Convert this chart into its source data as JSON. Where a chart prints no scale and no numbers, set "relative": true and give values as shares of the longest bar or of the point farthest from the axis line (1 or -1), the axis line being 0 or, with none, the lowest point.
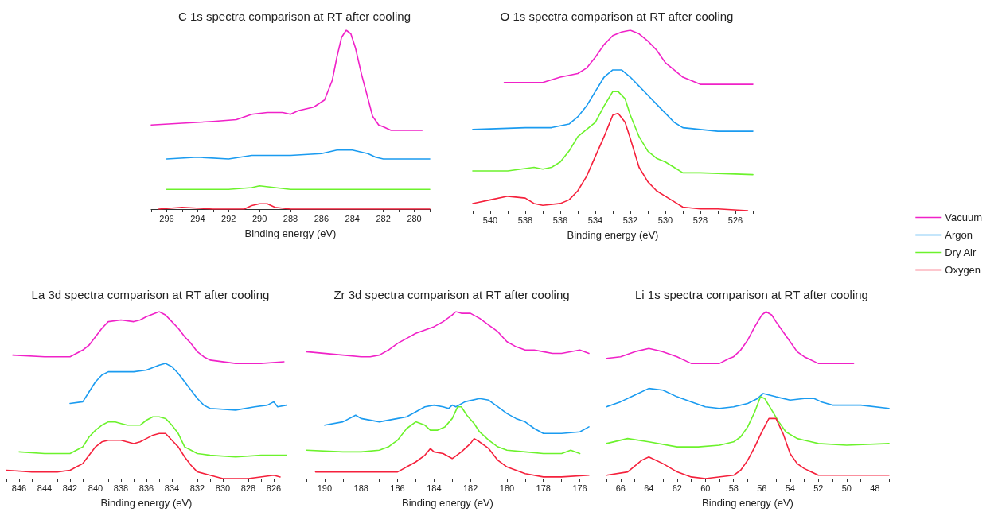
{
  "chart_data": [
    {
      "type": "line",
      "title": "C 1s spectra comparison at RT after cooling",
      "xlabel": "Binding energy (eV)",
      "relative": true,
      "tick_labels": "x",
      "grid": false,
      "marker": "none",
      "line_style": "solid",
      "xlim": [
        297,
        279
      ],
      "xticks": [
        {
          "value": 297,
          "label": null
        },
        296,
        {
          "value": 295,
          "label": null
        },
        294,
        {
          "value": 293,
          "label": null
        },
        292,
        {
          "value": 291,
          "label": null
        },
        290,
        {
          "value": 289,
          "label": null
        },
        288,
        {
          "value": 287,
          "label": null
        },
        286,
        {
          "value": 285,
          "label": null
        },
        284,
        {
          "value": 283,
          "label": null
        },
        282,
        {
          "value": 281,
          "label": null
        },
        280,
        {
          "value": 279,
          "label": null
        }
      ],
      "series": [
        {
          "color": "#f022c8",
          "x": [
            297,
            295,
            293,
            291.5,
            290.5,
            289.5,
            288.5,
            288,
            287.5,
            286.5,
            285.8,
            285.3,
            285,
            284.7,
            284.4,
            284.1,
            283.8,
            283.4,
            283,
            282.7,
            282.3,
            282,
            281.5,
            280.5,
            279.5
          ],
          "values": [
            0.47,
            0.48,
            0.49,
            0.5,
            0.53,
            0.54,
            0.54,
            0.53,
            0.55,
            0.57,
            0.61,
            0.72,
            0.85,
            0.96,
            1,
            0.98,
            0.9,
            0.75,
            0.62,
            0.52,
            0.47,
            0.46,
            0.44,
            0.44,
            0.44
          ]
        },
        {
          "color": "#1a9bf0",
          "x": [
            296,
            294,
            292,
            290.5,
            290,
            288,
            286,
            285,
            284.5,
            284,
            283.5,
            283,
            282.5,
            282,
            280,
            279
          ],
          "values": [
            0.28,
            0.29,
            0.28,
            0.3,
            0.3,
            0.3,
            0.31,
            0.33,
            0.33,
            0.33,
            0.32,
            0.31,
            0.29,
            0.28,
            0.28,
            0.28
          ]
        },
        {
          "color": "#6cf22c",
          "x": [
            296,
            292,
            290.5,
            290,
            289,
            288,
            284,
            279
          ],
          "values": [
            0.11,
            0.11,
            0.12,
            0.13,
            0.12,
            0.11,
            0.11,
            0.11
          ]
        },
        {
          "color": "#f5213c",
          "x": [
            296.5,
            295,
            293,
            291,
            290.5,
            290,
            289.5,
            289,
            288,
            284,
            279
          ],
          "values": [
            0,
            0.01,
            0,
            0,
            0.02,
            0.03,
            0.03,
            0.01,
            0,
            0,
            0
          ]
        }
      ]
    },
    {
      "type": "line",
      "title": "O 1s spectra comparison at RT after cooling",
      "xlabel": "Binding energy (eV)",
      "relative": true,
      "tick_labels": "x",
      "grid": false,
      "marker": "none",
      "line_style": "solid",
      "legend": "right",
      "xlim": [
        541,
        525
      ],
      "xticks": [
        {
          "value": 541,
          "label": null
        },
        540,
        {
          "value": 539,
          "label": null
        },
        538,
        {
          "value": 537,
          "label": null
        },
        536,
        {
          "value": 535,
          "label": null
        },
        534,
        {
          "value": 533,
          "label": null
        },
        532,
        {
          "value": 531,
          "label": null
        },
        530,
        {
          "value": 529,
          "label": null
        },
        528,
        {
          "value": 527,
          "label": null
        },
        526,
        {
          "value": 525,
          "label": null
        }
      ],
      "series": [
        {
          "name": "Vacuum",
          "color": "#f022c8",
          "x": [
            539.2,
            537,
            536,
            535,
            534.5,
            534,
            533.5,
            533,
            532.5,
            532,
            531.5,
            531,
            530.5,
            530,
            529.5,
            529,
            528.5,
            528,
            527,
            525
          ],
          "values": [
            0.71,
            0.71,
            0.74,
            0.76,
            0.79,
            0.85,
            0.92,
            0.97,
            0.99,
            1,
            0.98,
            0.94,
            0.89,
            0.82,
            0.78,
            0.74,
            0.72,
            0.7,
            0.7,
            0.7
          ]
        },
        {
          "name": "Argon",
          "color": "#1a9bf0",
          "x": [
            541,
            538,
            536.5,
            535.5,
            535,
            534.5,
            534,
            533.5,
            533,
            532.5,
            532,
            531.5,
            531,
            530.5,
            530,
            529.5,
            529,
            528,
            527,
            525
          ],
          "values": [
            0.45,
            0.46,
            0.46,
            0.48,
            0.52,
            0.58,
            0.66,
            0.74,
            0.78,
            0.78,
            0.74,
            0.69,
            0.64,
            0.59,
            0.54,
            0.49,
            0.46,
            0.45,
            0.44,
            0.44
          ]
        },
        {
          "name": "Dry Air",
          "color": "#6cf22c",
          "x": [
            541,
            539,
            537.5,
            537,
            536.5,
            536,
            535.5,
            535,
            534.5,
            534,
            533.5,
            533,
            532.7,
            532.3,
            532,
            531.5,
            531,
            530.5,
            530,
            529.5,
            529,
            528,
            525
          ],
          "values": [
            0.22,
            0.22,
            0.24,
            0.23,
            0.24,
            0.27,
            0.33,
            0.41,
            0.45,
            0.49,
            0.58,
            0.66,
            0.66,
            0.62,
            0.53,
            0.41,
            0.33,
            0.29,
            0.27,
            0.24,
            0.21,
            0.21,
            0.2
          ]
        },
        {
          "name": "Oxygen",
          "color": "#f5213c",
          "x": [
            541,
            540,
            539,
            538,
            537.5,
            537,
            536,
            535.5,
            535,
            534.5,
            534,
            533.5,
            533,
            532.7,
            532.3,
            532,
            531.5,
            531,
            530.5,
            530,
            529.5,
            529,
            528,
            527,
            525.3
          ],
          "values": [
            0.04,
            0.06,
            0.08,
            0.07,
            0.04,
            0.03,
            0.04,
            0.06,
            0.11,
            0.19,
            0.3,
            0.41,
            0.53,
            0.54,
            0.49,
            0.4,
            0.24,
            0.16,
            0.11,
            0.08,
            0.05,
            0.02,
            0.01,
            0.01,
            0
          ]
        }
      ]
    },
    {
      "type": "line",
      "title": "La 3d spectra comparison at RT after cooling",
      "xlabel": "Binding energy (eV)",
      "relative": true,
      "tick_labels": "x",
      "grid": false,
      "marker": "none",
      "line_style": "solid",
      "xlim": [
        847,
        825
      ],
      "xticks": [
        {
          "value": 847,
          "label": null
        },
        846,
        {
          "value": 845,
          "label": null
        },
        844,
        {
          "value": 843,
          "label": null
        },
        842,
        {
          "value": 841,
          "label": null
        },
        840,
        {
          "value": 839,
          "label": null
        },
        838,
        {
          "value": 837,
          "label": null
        },
        836,
        {
          "value": 835,
          "label": null
        },
        834,
        {
          "value": 833,
          "label": null
        },
        832,
        {
          "value": 831,
          "label": null
        },
        830,
        {
          "value": 829,
          "label": null
        },
        828,
        {
          "value": 827,
          "label": null
        },
        826,
        {
          "value": 825,
          "label": null
        }
      ],
      "series": [
        {
          "color": "#f022c8",
          "x": [
            846.5,
            844,
            842,
            841,
            840.5,
            840,
            839.5,
            839,
            838,
            837,
            836.5,
            836,
            835,
            834.5,
            834,
            833.5,
            833,
            832.5,
            832,
            831.5,
            831,
            829,
            827,
            825.2
          ],
          "values": [
            0.74,
            0.73,
            0.73,
            0.77,
            0.8,
            0.85,
            0.9,
            0.94,
            0.95,
            0.94,
            0.95,
            0.97,
            1,
            0.98,
            0.94,
            0.9,
            0.85,
            0.81,
            0.76,
            0.73,
            0.71,
            0.69,
            0.69,
            0.7
          ]
        },
        {
          "color": "#1a9bf0",
          "x": [
            842,
            841,
            840.5,
            840,
            839.5,
            839,
            838,
            837,
            836,
            835,
            834.5,
            834,
            833.5,
            833,
            832.5,
            832,
            831.5,
            831,
            829,
            827.5,
            826.5,
            826,
            825.7,
            825
          ],
          "values": [
            0.45,
            0.46,
            0.52,
            0.58,
            0.62,
            0.64,
            0.64,
            0.64,
            0.65,
            0.68,
            0.69,
            0.67,
            0.63,
            0.58,
            0.53,
            0.48,
            0.44,
            0.42,
            0.41,
            0.43,
            0.44,
            0.46,
            0.43,
            0.44
          ]
        },
        {
          "color": "#6cf22c",
          "x": [
            846,
            844,
            842,
            841.5,
            841,
            840.5,
            840,
            839.5,
            839,
            838.5,
            838,
            837.5,
            837,
            836.5,
            836,
            835.5,
            835,
            834.5,
            834,
            833.5,
            833,
            832.5,
            832,
            831,
            829,
            827,
            825
          ],
          "values": [
            0.16,
            0.15,
            0.15,
            0.17,
            0.19,
            0.25,
            0.29,
            0.32,
            0.34,
            0.34,
            0.33,
            0.32,
            0.32,
            0.32,
            0.35,
            0.37,
            0.37,
            0.36,
            0.32,
            0.27,
            0.19,
            0.17,
            0.15,
            0.14,
            0.13,
            0.14,
            0.14
          ]
        },
        {
          "color": "#f5213c",
          "x": [
            847,
            845,
            843,
            842,
            841.5,
            841,
            840.5,
            840,
            839.5,
            839,
            838.5,
            838,
            837,
            836.5,
            836,
            835.5,
            835,
            834.5,
            834,
            833.5,
            833,
            832.5,
            832,
            831,
            830,
            828,
            826,
            825.5
          ],
          "values": [
            0.05,
            0.04,
            0.04,
            0.05,
            0.07,
            0.09,
            0.14,
            0.19,
            0.22,
            0.23,
            0.23,
            0.23,
            0.21,
            0.22,
            0.24,
            0.26,
            0.27,
            0.27,
            0.23,
            0.19,
            0.13,
            0.08,
            0.04,
            0.02,
            0,
            0,
            0.02,
            0.01
          ]
        }
      ]
    },
    {
      "type": "line",
      "title": "Zr 3d spectra comparison at RT after cooling",
      "xlabel": "Binding energy (eV)",
      "relative": true,
      "tick_labels": "x",
      "grid": false,
      "marker": "none",
      "line_style": "solid",
      "xlim": [
        191,
        175.5
      ],
      "xticks": [
        {
          "value": 191,
          "label": null
        },
        190,
        {
          "value": 189,
          "label": null
        },
        188,
        {
          "value": 187,
          "label": null
        },
        186,
        {
          "value": 185,
          "label": null
        },
        184,
        {
          "value": 183,
          "label": null
        },
        182,
        {
          "value": 181,
          "label": null
        },
        180,
        {
          "value": 179,
          "label": null
        },
        178,
        {
          "value": 177,
          "label": null
        },
        176
      ],
      "series": [
        {
          "color": "#f022c8",
          "x": [
            191,
            189,
            188,
            187.5,
            187,
            186.5,
            186,
            185.5,
            185,
            184,
            183.5,
            183,
            182.8,
            182.5,
            182,
            181.5,
            181,
            180.5,
            180,
            179.5,
            179,
            178.5,
            178,
            177.5,
            177,
            176,
            175.5
          ],
          "values": [
            0.76,
            0.74,
            0.73,
            0.73,
            0.74,
            0.77,
            0.81,
            0.84,
            0.87,
            0.91,
            0.94,
            0.98,
            1,
            0.99,
            0.99,
            0.96,
            0.92,
            0.88,
            0.82,
            0.79,
            0.77,
            0.77,
            0.76,
            0.75,
            0.75,
            0.77,
            0.75
          ]
        },
        {
          "color": "#1a9bf0",
          "x": [
            190,
            189,
            188.3,
            188,
            187,
            186,
            185.5,
            185,
            184.5,
            184,
            183.5,
            183.2,
            183,
            182.8,
            182.3,
            181.5,
            181,
            180.5,
            180,
            179.5,
            179,
            178.5,
            178,
            177,
            176,
            175.5
          ],
          "values": [
            0.32,
            0.34,
            0.38,
            0.36,
            0.34,
            0.36,
            0.37,
            0.4,
            0.43,
            0.44,
            0.43,
            0.42,
            0.44,
            0.43,
            0.46,
            0.48,
            0.47,
            0.43,
            0.39,
            0.36,
            0.34,
            0.3,
            0.27,
            0.27,
            0.28,
            0.31
          ]
        },
        {
          "color": "#6cf22c",
          "x": [
            191,
            189,
            188,
            187,
            186.5,
            186,
            185.5,
            185,
            184.5,
            184.2,
            183.8,
            183.4,
            183,
            182.7,
            182.5,
            182.2,
            181.8,
            181.5,
            181,
            180.5,
            180,
            179,
            178,
            177,
            176.5,
            176
          ],
          "values": [
            0.17,
            0.16,
            0.16,
            0.17,
            0.19,
            0.23,
            0.3,
            0.34,
            0.32,
            0.29,
            0.29,
            0.31,
            0.36,
            0.43,
            0.43,
            0.38,
            0.33,
            0.28,
            0.23,
            0.19,
            0.17,
            0.16,
            0.15,
            0.15,
            0.17,
            0.15
          ]
        },
        {
          "color": "#f5213c",
          "x": [
            190.5,
            189,
            187,
            186,
            185.5,
            185,
            184.5,
            184.2,
            184,
            183.5,
            183,
            182.5,
            182,
            181.8,
            181.5,
            181,
            180.5,
            180,
            179,
            178,
            177,
            175.5
          ],
          "values": [
            0.04,
            0.04,
            0.04,
            0.04,
            0.07,
            0.1,
            0.14,
            0.18,
            0.16,
            0.15,
            0.12,
            0.16,
            0.21,
            0.24,
            0.22,
            0.18,
            0.11,
            0.07,
            0.03,
            0.01,
            0.01,
            0.02
          ]
        }
      ]
    },
    {
      "type": "line",
      "title": "Li 1s spectra comparison at RT after cooling",
      "xlabel": "Binding energy (eV)",
      "relative": true,
      "tick_labels": "x",
      "grid": false,
      "marker": "none",
      "line_style": "solid",
      "xlim": [
        67,
        47
      ],
      "xticks": [
        {
          "value": 67,
          "label": null
        },
        66,
        {
          "value": 65,
          "label": null
        },
        64,
        {
          "value": 63,
          "label": null
        },
        62,
        {
          "value": 61,
          "label": null
        },
        60,
        {
          "value": 59,
          "label": null
        },
        58,
        {
          "value": 57,
          "label": null
        },
        56,
        {
          "value": 55,
          "label": null
        },
        54,
        {
          "value": 53,
          "label": null
        },
        52,
        {
          "value": 51,
          "label": null
        },
        50,
        {
          "value": 49,
          "label": null
        },
        48,
        {
          "value": 47,
          "label": null
        }
      ],
      "series": [
        {
          "color": "#f022c8",
          "x": [
            67,
            66,
            65,
            64,
            63.5,
            63,
            62,
            61,
            60,
            59,
            58.3,
            58,
            57.5,
            57,
            56.5,
            56,
            55.7,
            55.3,
            55,
            54.5,
            54,
            53.5,
            53,
            52,
            51,
            49.5
          ],
          "values": [
            0.72,
            0.73,
            0.76,
            0.78,
            0.77,
            0.76,
            0.73,
            0.69,
            0.69,
            0.69,
            0.72,
            0.73,
            0.77,
            0.83,
            0.91,
            0.98,
            1,
            0.98,
            0.94,
            0.88,
            0.82,
            0.76,
            0.73,
            0.69,
            0.69,
            0.69
          ]
        },
        {
          "color": "#1a9bf0",
          "x": [
            67,
            66,
            65,
            64,
            63,
            62,
            61,
            60,
            59,
            58,
            57,
            56.3,
            55.9,
            55,
            54,
            53,
            52.3,
            51.8,
            51,
            49,
            47
          ],
          "values": [
            0.43,
            0.46,
            0.5,
            0.54,
            0.53,
            0.49,
            0.46,
            0.43,
            0.42,
            0.43,
            0.45,
            0.48,
            0.51,
            0.49,
            0.47,
            0.48,
            0.48,
            0.46,
            0.44,
            0.44,
            0.42
          ]
        },
        {
          "color": "#6cf22c",
          "x": [
            67,
            65.5,
            64,
            62,
            60.5,
            59,
            58,
            57.5,
            57,
            56.5,
            56.1,
            55.8,
            55.3,
            54.8,
            54.3,
            53.5,
            53,
            52,
            50,
            47
          ],
          "values": [
            0.21,
            0.24,
            0.22,
            0.19,
            0.19,
            0.2,
            0.22,
            0.25,
            0.31,
            0.4,
            0.49,
            0.48,
            0.41,
            0.34,
            0.28,
            0.24,
            0.23,
            0.21,
            0.2,
            0.21
          ]
        },
        {
          "color": "#f5213c",
          "x": [
            67,
            65.5,
            64.5,
            64,
            63,
            62,
            61,
            60,
            58,
            57.5,
            57,
            56.5,
            56,
            55.5,
            55,
            54.5,
            54,
            53.5,
            53,
            52,
            51,
            47
          ],
          "values": [
            0.02,
            0.04,
            0.11,
            0.13,
            0.09,
            0.04,
            0.01,
            0,
            0.02,
            0.05,
            0.11,
            0.19,
            0.28,
            0.36,
            0.36,
            0.27,
            0.15,
            0.09,
            0.06,
            0.02,
            0.02,
            0.02
          ]
        }
      ]
    }
  ]
}
